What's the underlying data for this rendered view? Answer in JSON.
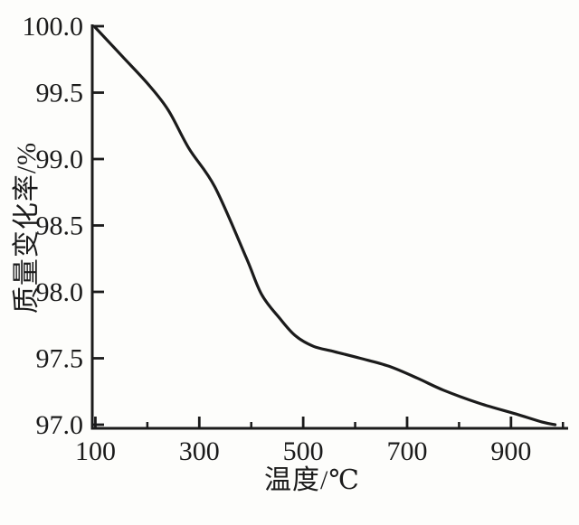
{
  "figure": {
    "background": "#fdfdfb",
    "ink_color": "#1b1b1b"
  },
  "chart_data": {
    "type": "line",
    "title": "",
    "xlabel": "温度/℃",
    "ylabel": "质量变化率/%",
    "xlim": [
      94,
      1010
    ],
    "ylim": [
      97.0,
      100.0
    ],
    "grid": false,
    "legend": "none",
    "x_major_ticks": [
      100,
      300,
      500,
      700,
      900
    ],
    "x_major_tick_labels": [
      "100",
      "300",
      "500",
      "700",
      "900"
    ],
    "x_minor_ticks": [
      200,
      400,
      600,
      800,
      1000
    ],
    "y_ticks": [
      97.0,
      97.5,
      98.0,
      98.5,
      99.0,
      99.5,
      100.0
    ],
    "y_tick_labels": [
      "97.0",
      "97.5",
      "98.0",
      "98.5",
      "99.0",
      "99.5",
      "100.0"
    ],
    "series": [
      {
        "name": "mass-change-curve",
        "x": [
          100,
          150,
          200,
          240,
          280,
          330,
          390,
          420,
          455,
          485,
          520,
          560,
          610,
          665,
          720,
          770,
          840,
          910,
          960,
          985
        ],
        "values": [
          99.99,
          99.78,
          99.57,
          99.37,
          99.08,
          98.79,
          98.26,
          97.98,
          97.8,
          97.67,
          97.59,
          97.55,
          97.5,
          97.44,
          97.35,
          97.26,
          97.16,
          97.08,
          97.02,
          97.0
        ]
      }
    ]
  }
}
